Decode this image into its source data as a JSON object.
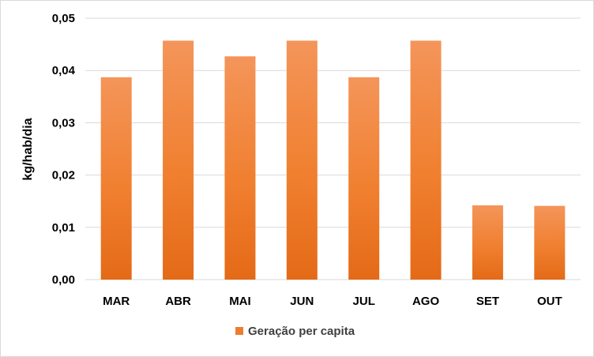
{
  "chart_data": {
    "type": "bar",
    "title": "",
    "xlabel": "",
    "ylabel": "kg/hab/dia",
    "categories": [
      "MAR",
      "ABR",
      "MAI",
      "JUN",
      "JUL",
      "AGO",
      "SET",
      "OUT"
    ],
    "series": [
      {
        "name": "Geração per capita",
        "values": [
          0.0387,
          0.0457,
          0.0427,
          0.0457,
          0.0387,
          0.0457,
          0.0142,
          0.0141
        ],
        "color": "#ed7d31"
      }
    ],
    "ylim": [
      0,
      0.05
    ],
    "yticks": [
      "0,00",
      "0,01",
      "0,02",
      "0,03",
      "0,04",
      "0,05"
    ],
    "grid": true,
    "legend": "bottom"
  }
}
